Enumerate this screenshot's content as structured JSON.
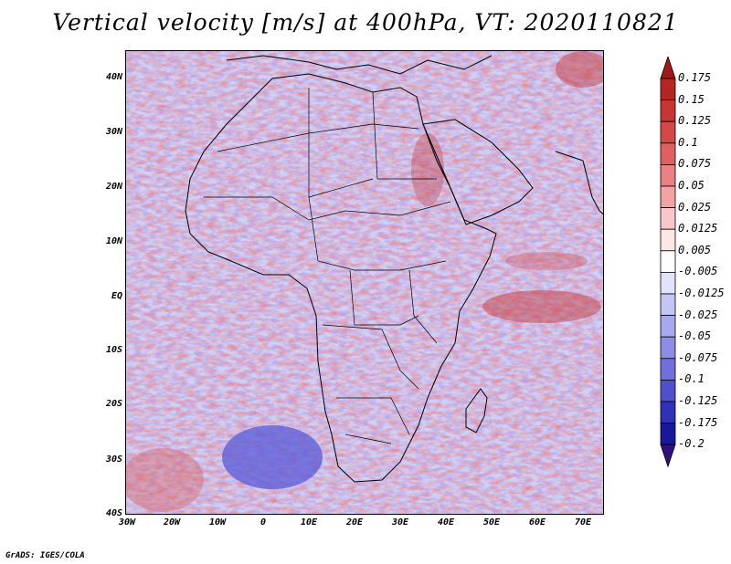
{
  "title": "Vertical velocity [m/s] at 400hPa, VT: 2020110821",
  "credit": "GrADS: IGES/COLA",
  "map": {
    "lat_labels": [
      "40N",
      "30N",
      "20N",
      "10N",
      "EQ",
      "10S",
      "20S",
      "30S",
      "40S"
    ],
    "lon_labels": [
      "30W",
      "20W",
      "10W",
      "0",
      "10E",
      "20E",
      "30E",
      "40E",
      "50E",
      "60E",
      "70E"
    ],
    "lat_range": [
      -40,
      45
    ],
    "lon_range": [
      -30,
      75
    ]
  },
  "colorbar": {
    "labels": [
      "0.175",
      "0.15",
      "0.125",
      "0.1",
      "0.075",
      "0.05",
      "0.025",
      "0.0125",
      "0.005",
      "-0.005",
      "-0.0125",
      "-0.025",
      "-0.05",
      "-0.075",
      "-0.1",
      "-0.125",
      "-0.175",
      "-0.2"
    ],
    "colors": [
      "#a01818",
      "#b62424",
      "#c83434",
      "#d64848",
      "#e06060",
      "#ea8080",
      "#f2a4a4",
      "#f8c8c8",
      "#fde6e6",
      "#ffffff",
      "#e2e2fb",
      "#c4c4f5",
      "#a8a8ee",
      "#8c8ce6",
      "#7070dc",
      "#5050cc",
      "#3030b8",
      "#18189c",
      "#30107a"
    ]
  }
}
